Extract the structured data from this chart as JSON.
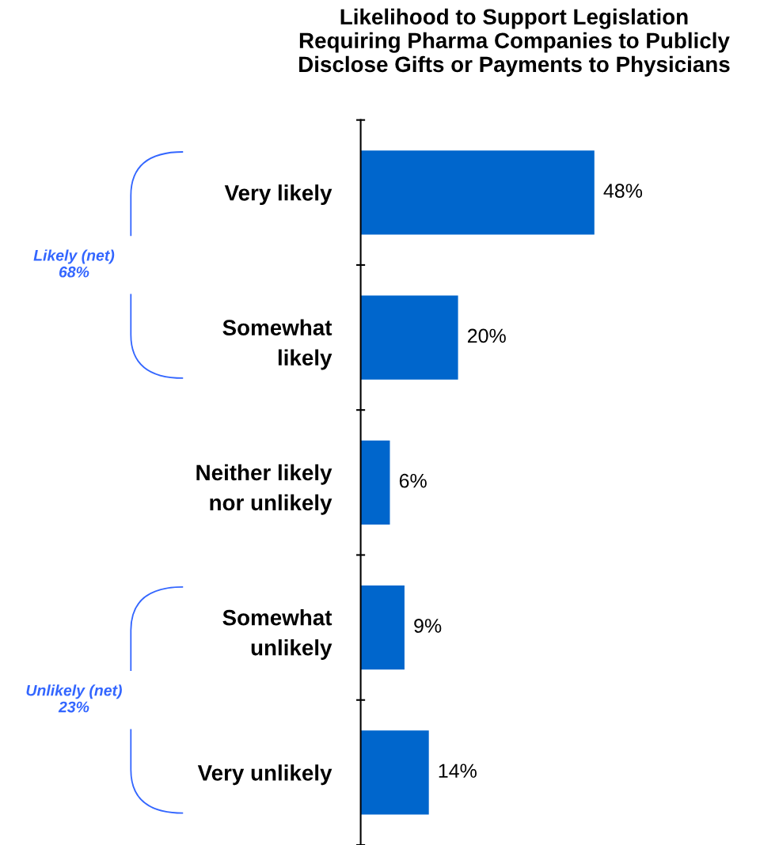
{
  "chart_data": {
    "type": "bar",
    "orientation": "horizontal",
    "title": "Likelihood to Support Legislation\nRequiring Pharma Companies to Publicly\nDisclose Gifts or Payments to Physicians",
    "categories": [
      "Very likely",
      "Somewhat\nlikely",
      "Neither likely\nnor unlikely",
      "Somewhat\nunlikely",
      "Very unlikely"
    ],
    "values": [
      48,
      20,
      6,
      9,
      14
    ],
    "color": "#0066cc",
    "data_labels": true,
    "value_labels": [
      "48%",
      "20%",
      "6%",
      "9%",
      "14%"
    ],
    "annotations": [
      "Likely (net)\n68%",
      "Unlikely (net)\n23%"
    ],
    "grid": false,
    "legend": false
  }
}
